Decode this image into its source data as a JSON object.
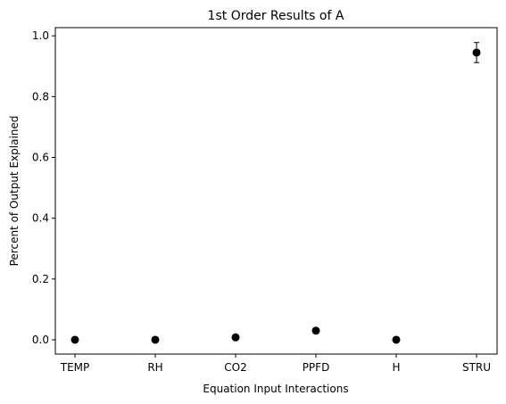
{
  "chart_data": {
    "type": "scatter",
    "title": "1st Order Results of A",
    "xlabel": "Equation Input Interactions",
    "ylabel": "Percent of Output Explained",
    "categories": [
      "TEMP",
      "RH",
      "CO2",
      "PPFD",
      "H",
      "STRU"
    ],
    "values": [
      0.0,
      0.0,
      0.008,
      0.03,
      0.0,
      0.945
    ],
    "error_low": [
      0.0,
      0.0,
      0.0,
      0.0,
      0.0,
      0.912
    ],
    "error_high": [
      0.0,
      0.0,
      0.0,
      0.0,
      0.0,
      0.978
    ],
    "ylim": [
      -0.047,
      1.027
    ],
    "yticks": [
      "0.0",
      "0.2",
      "0.4",
      "0.6",
      "0.8",
      "1.0"
    ],
    "ytick_values": [
      0.0,
      0.2,
      0.4,
      0.6,
      0.8,
      1.0
    ],
    "grid": false,
    "marker_color": "#000000"
  }
}
